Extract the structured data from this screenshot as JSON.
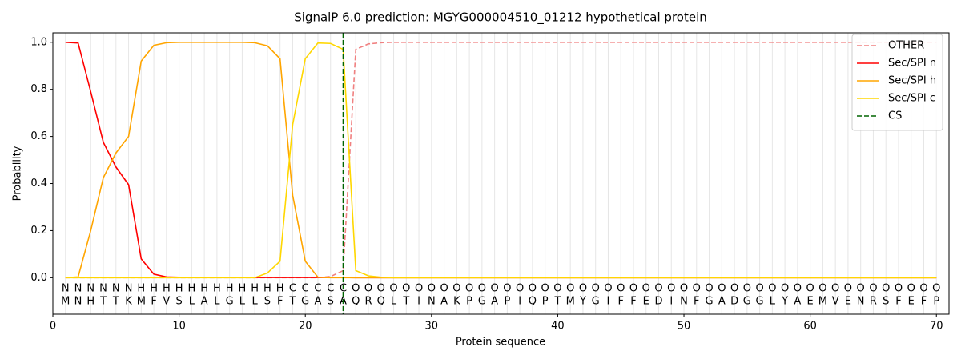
{
  "chart_data": {
    "type": "line",
    "title": "SignalP 6.0 prediction: MGYG000004510_01212 hypothetical protein",
    "x_label": "Protein sequence",
    "y_label": "Probability",
    "x": [
      1,
      2,
      3,
      4,
      5,
      6,
      7,
      8,
      9,
      10,
      11,
      12,
      13,
      14,
      15,
      16,
      17,
      18,
      19,
      20,
      21,
      22,
      23,
      24,
      25,
      26,
      27,
      28,
      29,
      30,
      31,
      32,
      33,
      34,
      35,
      36,
      37,
      38,
      39,
      40,
      41,
      42,
      43,
      44,
      45,
      46,
      47,
      48,
      49,
      50,
      51,
      52,
      53,
      54,
      55,
      56,
      57,
      58,
      59,
      60,
      61,
      62,
      63,
      64,
      65,
      66,
      67,
      68,
      69,
      70
    ],
    "series": [
      {
        "name": "OTHER",
        "color": "#f08080",
        "dash": true,
        "values": [
          0,
          0,
          0,
          0,
          0,
          0,
          0,
          0,
          0,
          0,
          0,
          0,
          0,
          0,
          0,
          0,
          0,
          0,
          0,
          0,
          0,
          0.005,
          0.03,
          0.97,
          0.993,
          0.998,
          1,
          1,
          1,
          1,
          1,
          1,
          1,
          1,
          1,
          1,
          1,
          1,
          1,
          1,
          1,
          1,
          1,
          1,
          1,
          1,
          1,
          1,
          1,
          1,
          1,
          1,
          1,
          1,
          1,
          1,
          1,
          1,
          1,
          1,
          1,
          1,
          1,
          1,
          1,
          1,
          1,
          1,
          1,
          1
        ]
      },
      {
        "name": "Sec/SPI n",
        "color": "#ff0000",
        "dash": false,
        "values": [
          1.0,
          0.997,
          0.79,
          0.575,
          0.47,
          0.395,
          0.08,
          0.015,
          0.003,
          0.002,
          0.002,
          0.001,
          0.001,
          0.001,
          0.001,
          0.001,
          0.001,
          0.001,
          0.001,
          0.001,
          0.001,
          0.001,
          0.001,
          0,
          0,
          0,
          0,
          0,
          0,
          0,
          0,
          0,
          0,
          0,
          0,
          0,
          0,
          0,
          0,
          0,
          0,
          0,
          0,
          0,
          0,
          0,
          0,
          0,
          0,
          0,
          0,
          0,
          0,
          0,
          0,
          0,
          0,
          0,
          0,
          0,
          0,
          0,
          0,
          0,
          0,
          0,
          0,
          0,
          0,
          0
        ]
      },
      {
        "name": "Sec/SPI h",
        "color": "#ffa500",
        "dash": false,
        "values": [
          0,
          0.003,
          0.2,
          0.425,
          0.53,
          0.6,
          0.92,
          0.987,
          0.998,
          1,
          1,
          1,
          1,
          1,
          1,
          0.998,
          0.985,
          0.93,
          0.35,
          0.07,
          0.002,
          0,
          0,
          0,
          0,
          0,
          0,
          0,
          0,
          0,
          0,
          0,
          0,
          0,
          0,
          0,
          0,
          0,
          0,
          0,
          0,
          0,
          0,
          0,
          0,
          0,
          0,
          0,
          0,
          0,
          0,
          0,
          0,
          0,
          0,
          0,
          0,
          0,
          0,
          0,
          0,
          0,
          0,
          0,
          0,
          0,
          0,
          0,
          0,
          0
        ]
      },
      {
        "name": "Sec/SPI c",
        "color": "#ffd700",
        "dash": false,
        "values": [
          0,
          0,
          0,
          0,
          0,
          0,
          0,
          0,
          0,
          0,
          0,
          0,
          0,
          0,
          0,
          0,
          0.02,
          0.07,
          0.65,
          0.93,
          0.997,
          0.995,
          0.97,
          0.03,
          0.008,
          0.002,
          0,
          0,
          0,
          0,
          0,
          0,
          0,
          0,
          0,
          0,
          0,
          0,
          0,
          0,
          0,
          0,
          0,
          0,
          0,
          0,
          0,
          0,
          0,
          0,
          0,
          0,
          0,
          0,
          0,
          0,
          0,
          0,
          0,
          0,
          0,
          0,
          0,
          0,
          0,
          0,
          0,
          0,
          0,
          0
        ]
      }
    ],
    "cs": {
      "name": "CS",
      "x": 23,
      "color": "#006400"
    },
    "labels": [
      "N",
      "N",
      "N",
      "N",
      "N",
      "N",
      "H",
      "H",
      "H",
      "H",
      "H",
      "H",
      "H",
      "H",
      "H",
      "H",
      "H",
      "H",
      "C",
      "C",
      "C",
      "C",
      "C",
      "O",
      "O",
      "O",
      "O",
      "O",
      "O",
      "O",
      "O",
      "O",
      "O",
      "O",
      "O",
      "O",
      "O",
      "O",
      "O",
      "O",
      "O",
      "O",
      "O",
      "O",
      "O",
      "O",
      "O",
      "O",
      "O",
      "O",
      "O",
      "O",
      "O",
      "O",
      "O",
      "O",
      "O",
      "O",
      "O",
      "O",
      "O",
      "O",
      "O",
      "O",
      "O",
      "O",
      "O",
      "O",
      "O",
      "O"
    ],
    "label_colors": {
      "N": "#ff0000",
      "H": "#ffa500",
      "C": "#ffd700",
      "O": "#808080"
    },
    "sequence": [
      "M",
      "N",
      "H",
      "T",
      "T",
      "K",
      "M",
      "F",
      "V",
      "S",
      "L",
      "A",
      "L",
      "G",
      "L",
      "L",
      "S",
      "F",
      "T",
      "G",
      "A",
      "S",
      "A",
      "Q",
      "R",
      "Q",
      "L",
      "T",
      "I",
      "N",
      "A",
      "K",
      "P",
      "G",
      "A",
      "P",
      "I",
      "Q",
      "P",
      "T",
      "M",
      "Y",
      "G",
      "I",
      "F",
      "F",
      "E",
      "D",
      "I",
      "N",
      "F",
      "G",
      "A",
      "D",
      "G",
      "G",
      "L",
      "Y",
      "A",
      "E",
      "M",
      "V",
      "E",
      "N",
      "R",
      "S",
      "F",
      "E",
      "F",
      "P"
    ],
    "xlim": [
      0,
      71
    ],
    "ylim": [
      -0.155,
      1.04
    ],
    "xticks": [
      0,
      10,
      20,
      30,
      40,
      50,
      60,
      70
    ],
    "yticks": [
      {
        "value": 0,
        "label": "0.0"
      },
      0.2,
      0.4,
      0.6,
      0.8,
      {
        "value": 1,
        "label": "1.0"
      }
    ],
    "grid": true,
    "legend": "upper right"
  }
}
